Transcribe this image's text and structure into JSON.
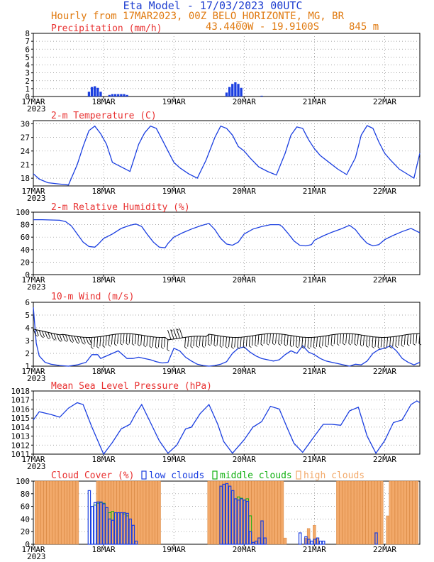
{
  "header": {
    "title": "Eta Model - 17/03/2023 00UTC",
    "subtitle": "Hourly from 17MAR2023, 00Z  BELO_HORIZONTE, MG, BR",
    "coords": "43.4400W - 19.9100S",
    "elevation": "845  m"
  },
  "colors": {
    "title": "#1f3fd0",
    "header": "#e07a10",
    "panel_title": "#e83030",
    "series": "#1a3ee0",
    "low": "#1a3ee0",
    "middle": "#11b011",
    "high": "#f2a96a"
  },
  "x_axis": {
    "ticks": [
      {
        "label": "17MAR",
        "h": 0
      },
      {
        "label": "18MAR",
        "h": 24
      },
      {
        "label": "19MAR",
        "h": 48
      },
      {
        "label": "20MAR",
        "h": 72
      },
      {
        "label": "21MAR",
        "h": 96
      },
      {
        "label": "22MAR",
        "h": 120
      }
    ],
    "year": "2023",
    "hours": 132
  },
  "chart_data": [
    {
      "type": "bar",
      "title": "Precipitation (mm/h)",
      "ylim": [
        0,
        8
      ],
      "yticks": [
        0,
        1,
        2,
        3,
        4,
        5,
        6,
        7,
        8
      ],
      "x": [
        19,
        20,
        21,
        22,
        23,
        26,
        27,
        28,
        29,
        30,
        31,
        32,
        66,
        67,
        68,
        69,
        70,
        71,
        78
      ],
      "values": [
        0.6,
        1.2,
        1.3,
        1.1,
        0.6,
        0.2,
        0.3,
        0.3,
        0.3,
        0.3,
        0.3,
        0.2,
        0.5,
        1.2,
        1.6,
        1.8,
        1.6,
        1.1,
        0.1
      ]
    },
    {
      "type": "line",
      "title": "2-m Temperature (C)",
      "ylim": [
        16.3,
        30.7
      ],
      "yticks": [
        18,
        21,
        24,
        27,
        30
      ],
      "x": [
        0,
        2,
        5,
        9,
        12,
        15,
        17,
        19,
        21,
        23,
        25,
        27,
        30,
        33,
        36,
        38,
        40,
        42,
        44,
        46,
        48,
        50,
        53,
        56,
        59,
        62,
        64,
        66,
        68,
        70,
        72,
        74,
        77,
        80,
        83,
        86,
        88,
        90,
        92,
        94,
        96,
        98,
        101,
        104,
        107,
        110,
        112,
        114,
        116,
        118,
        120,
        122,
        125,
        128,
        130,
        132
      ],
      "values": [
        19.0,
        17.8,
        17.0,
        16.7,
        16.5,
        21.0,
        25.0,
        28.5,
        29.5,
        27.8,
        25.5,
        21.5,
        20.5,
        19.5,
        25.5,
        28.0,
        29.5,
        29.0,
        26.5,
        24.0,
        21.5,
        20.3,
        19.0,
        18.0,
        22.0,
        27.0,
        29.5,
        29.0,
        27.5,
        25.0,
        24.0,
        22.5,
        20.5,
        19.5,
        18.7,
        23.5,
        27.5,
        29.3,
        29.0,
        26.5,
        24.5,
        23.0,
        21.5,
        20.0,
        18.8,
        22.5,
        27.5,
        29.6,
        29.0,
        26.0,
        23.5,
        22.0,
        20.0,
        18.8,
        18.0,
        23.5
      ]
    },
    {
      "type": "line",
      "title": "2-m Relative Humidity (%)",
      "ylim": [
        0,
        100
      ],
      "yticks": [
        0,
        20,
        40,
        60,
        80,
        100
      ],
      "x": [
        0,
        3,
        6,
        9,
        11,
        13,
        15,
        17,
        19,
        21,
        22,
        24,
        27,
        30,
        33,
        35,
        37,
        39,
        41,
        43,
        45,
        46,
        48,
        51,
        54,
        57,
        60,
        62,
        64,
        66,
        68,
        70,
        72,
        75,
        78,
        81,
        84,
        85,
        87,
        89,
        91,
        93,
        95,
        96,
        99,
        102,
        105,
        108,
        110,
        112,
        114,
        116,
        118,
        120,
        123,
        126,
        129,
        132
      ],
      "values": [
        88,
        88,
        87.5,
        87,
        85,
        78,
        65,
        52,
        45,
        44,
        48,
        58,
        65,
        74,
        79,
        81,
        77,
        64,
        52,
        44,
        43,
        50,
        60,
        67,
        73,
        78,
        82,
        72,
        58,
        49,
        47,
        52,
        65,
        73,
        77,
        80,
        80,
        77,
        66,
        54,
        47,
        46,
        48,
        55,
        62,
        68,
        73,
        79,
        72,
        60,
        50,
        46,
        48,
        56,
        63,
        69,
        74,
        67
      ]
    },
    {
      "type": "line",
      "title": "10-m Wind (m/s)",
      "ylim": [
        1,
        6
      ],
      "yticks": [
        1,
        2,
        3,
        4,
        5,
        6
      ],
      "x": [
        0,
        1,
        2,
        4,
        6,
        9,
        12,
        15,
        18,
        20,
        22,
        23,
        25,
        27,
        29,
        31,
        32,
        34,
        36,
        38,
        40,
        42,
        44,
        46,
        48,
        50,
        52,
        54,
        56,
        58,
        60,
        62,
        64,
        66,
        68,
        70,
        72,
        74,
        76,
        78,
        80,
        82,
        84,
        86,
        88,
        90,
        92,
        94,
        96,
        98,
        100,
        102,
        104,
        106,
        108,
        110,
        112,
        114,
        116,
        118,
        120,
        122,
        124,
        126,
        128,
        130,
        132
      ],
      "values": [
        5.6,
        2.8,
        1.8,
        1.3,
        1.15,
        1.05,
        1.0,
        1.1,
        1.3,
        1.9,
        1.9,
        1.6,
        1.8,
        2.0,
        2.2,
        1.8,
        1.6,
        1.6,
        1.7,
        1.6,
        1.5,
        1.35,
        1.25,
        1.3,
        2.4,
        2.2,
        1.7,
        1.4,
        1.15,
        1.05,
        1.0,
        1.05,
        1.15,
        1.35,
        2.0,
        2.4,
        2.5,
        2.1,
        1.8,
        1.6,
        1.5,
        1.4,
        1.5,
        1.9,
        2.2,
        2.0,
        2.6,
        2.1,
        1.9,
        1.6,
        1.4,
        1.3,
        1.2,
        1.1,
        1.0,
        1.15,
        1.1,
        1.4,
        2.0,
        2.3,
        2.4,
        2.6,
        2.2,
        1.6,
        1.3,
        1.1,
        1.3
      ],
      "barb_speed_level": 3.4
    },
    {
      "type": "line",
      "title": "Mean Sea Level Pressure (hPa)",
      "ylim": [
        1011,
        1018
      ],
      "yticks": [
        1011,
        1012,
        1013,
        1014,
        1015,
        1016,
        1017,
        1018
      ],
      "x": [
        0,
        2,
        6,
        9,
        12,
        15,
        17,
        20,
        24,
        27,
        30,
        33,
        35,
        37,
        40,
        43,
        46,
        49,
        52,
        54,
        57,
        60,
        63,
        65,
        68,
        72,
        75,
        78,
        81,
        84,
        87,
        89,
        92,
        96,
        99,
        102,
        105,
        108,
        111,
        114,
        117,
        120,
        123,
        126,
        129,
        131,
        132
      ],
      "values": [
        1014.8,
        1015.7,
        1015.4,
        1015.1,
        1016.1,
        1016.7,
        1016.5,
        1014.0,
        1011.0,
        1012.3,
        1013.8,
        1014.3,
        1015.5,
        1016.5,
        1014.5,
        1012.5,
        1011.1,
        1012.0,
        1013.8,
        1014.0,
        1015.5,
        1016.5,
        1014.3,
        1012.4,
        1011.1,
        1012.6,
        1014.0,
        1014.6,
        1016.3,
        1016.0,
        1013.7,
        1012.2,
        1011.2,
        1013.0,
        1014.3,
        1014.3,
        1014.2,
        1015.8,
        1016.2,
        1013.0,
        1011.1,
        1012.5,
        1014.5,
        1014.8,
        1016.5,
        1016.9,
        1016.7
      ]
    },
    {
      "type": "bar",
      "title": "Cloud Cover (%)",
      "ylim": [
        0,
        100
      ],
      "yticks": [
        0,
        20,
        40,
        60,
        80,
        100
      ],
      "legend": [
        "low clouds",
        "middle clouds",
        "high clouds"
      ],
      "series": [
        {
          "name": "high clouds",
          "x": [
            1,
            2,
            3,
            4,
            5,
            6,
            7,
            8,
            9,
            10,
            11,
            12,
            13,
            14,
            15,
            22,
            23,
            24,
            25,
            26,
            27,
            28,
            29,
            30,
            31,
            32,
            33,
            34,
            35,
            36,
            37,
            38,
            39,
            40,
            41,
            42,
            43,
            60,
            61,
            62,
            63,
            64,
            65,
            66,
            67,
            68,
            69,
            70,
            71,
            72,
            73,
            74,
            75,
            76,
            77,
            78,
            79,
            80,
            81,
            82,
            83,
            84,
            85,
            86,
            93,
            94,
            96,
            97,
            104,
            105,
            106,
            107,
            108,
            109,
            110,
            111,
            112,
            113,
            114,
            115,
            116,
            117,
            118,
            119,
            121,
            122,
            123,
            124,
            125,
            126,
            127,
            128,
            129,
            130,
            131
          ],
          "values": [
            100,
            100,
            100,
            100,
            100,
            100,
            100,
            100,
            100,
            100,
            100,
            100,
            100,
            100,
            100,
            100,
            100,
            100,
            100,
            100,
            100,
            100,
            100,
            100,
            100,
            100,
            100,
            100,
            100,
            100,
            100,
            100,
            100,
            100,
            100,
            100,
            100,
            100,
            100,
            100,
            100,
            100,
            100,
            100,
            100,
            100,
            100,
            100,
            100,
            100,
            100,
            100,
            100,
            100,
            100,
            100,
            100,
            100,
            100,
            100,
            100,
            100,
            100,
            10,
            10,
            25,
            30,
            10,
            100,
            100,
            100,
            100,
            100,
            100,
            100,
            100,
            100,
            100,
            100,
            100,
            100,
            100,
            100,
            100,
            45,
            100,
            100,
            100,
            100,
            100,
            100,
            100,
            100,
            100,
            100
          ]
        },
        {
          "name": "middle clouds",
          "x": [
            21,
            22,
            23,
            24,
            25,
            26,
            27,
            28,
            29,
            30,
            31,
            32,
            70,
            71,
            72,
            73,
            74
          ],
          "values": [
            62,
            65,
            66,
            65,
            58,
            50,
            52,
            50,
            50,
            50,
            48,
            45,
            75,
            73,
            70,
            72,
            45
          ]
        },
        {
          "name": "low clouds",
          "x": [
            19,
            20,
            21,
            22,
            23,
            24,
            25,
            26,
            27,
            28,
            29,
            30,
            31,
            32,
            33,
            34,
            35,
            64,
            65,
            66,
            67,
            68,
            69,
            70,
            71,
            72,
            73,
            74,
            75,
            76,
            77,
            78,
            79,
            91,
            93,
            94,
            95,
            96,
            97,
            98,
            99,
            117
          ],
          "values": [
            85,
            60,
            66,
            67,
            67,
            64,
            58,
            40,
            38,
            50,
            50,
            50,
            50,
            49,
            40,
            30,
            5,
            92,
            95,
            96,
            92,
            85,
            72,
            70,
            72,
            70,
            68,
            20,
            3,
            5,
            10,
            37,
            10,
            18,
            12,
            8,
            5,
            8,
            10,
            5,
            5,
            18
          ]
        }
      ]
    }
  ]
}
